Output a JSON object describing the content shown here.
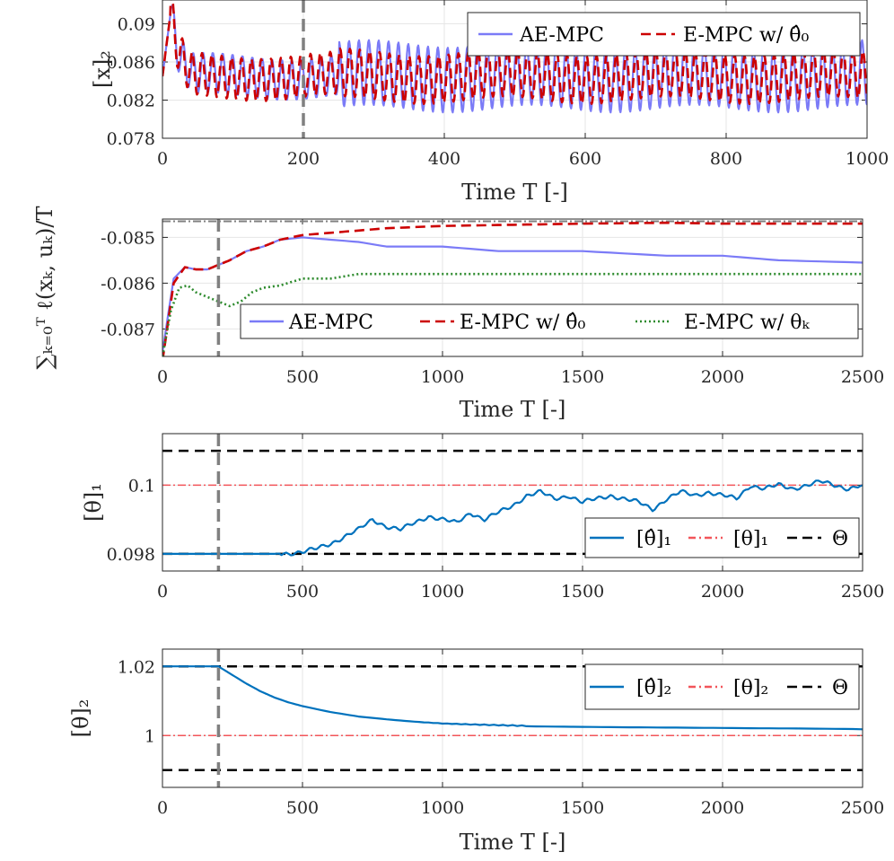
{
  "chart_data": [
    {
      "type": "line",
      "ylabel": "[x]₂",
      "xlabel": "Time T [-]",
      "xlim": [
        0,
        1000
      ],
      "ylim": [
        0.078,
        0.0925
      ],
      "xticks": [
        "0",
        "200",
        "400",
        "600",
        "800",
        "1000"
      ],
      "yticks": [
        "0.078",
        "0.082",
        "0.086",
        "0.09"
      ],
      "grid": true,
      "vline": 200,
      "legend_position": "top-right",
      "series": [
        {
          "name": "AE-MPC",
          "color": "#7B7BF7",
          "style": "solid",
          "mean": 0.0845,
          "amplitude_early": 0.0021,
          "amplitude_late": 0.0034,
          "period": 14,
          "start_peak": 0.0914
        },
        {
          "name": "E-MPC w/ θ̂₀",
          "color": "#CC0000",
          "style": "dashed",
          "mean": 0.0845,
          "amplitude_early": 0.0022,
          "amplitude_late": 0.0025,
          "period": 14,
          "start_peak": 0.0914
        }
      ]
    },
    {
      "type": "line",
      "ylabel": "∑ₖ₌₀ᵀ ℓ(xₖ, uₖ)/T",
      "xlabel": "Time T [-]",
      "xlim": [
        0,
        2500
      ],
      "ylim": [
        -0.0876,
        -0.0846
      ],
      "xticks": [
        "0",
        "500",
        "1000",
        "1500",
        "2000",
        "2500"
      ],
      "yticks": [
        "-0.087",
        "-0.086",
        "-0.085"
      ],
      "grid": true,
      "vline": 200,
      "hline": -0.08465,
      "legend_position": "bottom",
      "series": [
        {
          "name": "AE-MPC",
          "color": "#7B7BF7",
          "style": "solid",
          "x": [
            0,
            40,
            80,
            120,
            160,
            200,
            240,
            300,
            360,
            420,
            500,
            600,
            700,
            800,
            1000,
            1200,
            1500,
            1800,
            2000,
            2200,
            2500
          ],
          "y": [
            -0.0875,
            -0.0859,
            -0.08565,
            -0.0857,
            -0.0857,
            -0.0856,
            -0.0855,
            -0.0853,
            -0.0852,
            -0.08505,
            -0.085,
            -0.08505,
            -0.0851,
            -0.0852,
            -0.0852,
            -0.0853,
            -0.0853,
            -0.0854,
            -0.0854,
            -0.0855,
            -0.08555
          ]
        },
        {
          "name": "E-MPC w/ θ̂₀",
          "color": "#CC0000",
          "style": "dashed",
          "x": [
            0,
            40,
            80,
            120,
            160,
            200,
            240,
            300,
            360,
            420,
            500,
            600,
            700,
            800,
            1000,
            1200,
            1500,
            1800,
            2000,
            2200,
            2500
          ],
          "y": [
            -0.0877,
            -0.086,
            -0.08565,
            -0.0857,
            -0.0857,
            -0.0856,
            -0.0855,
            -0.0853,
            -0.0852,
            -0.08505,
            -0.08495,
            -0.0849,
            -0.08485,
            -0.0848,
            -0.08475,
            -0.08473,
            -0.0847,
            -0.08468,
            -0.0847,
            -0.0847,
            -0.0847
          ]
        },
        {
          "name": "E-MPC w/ θₖ",
          "color": "#2E8B2E",
          "style": "dotted",
          "x": [
            0,
            30,
            60,
            90,
            120,
            160,
            200,
            240,
            280,
            320,
            360,
            420,
            500,
            600,
            700,
            800,
            1000,
            1200,
            1500,
            1800,
            2000,
            2200,
            2500
          ],
          "y": [
            -0.0876,
            -0.0866,
            -0.0861,
            -0.08605,
            -0.0862,
            -0.0863,
            -0.0864,
            -0.0865,
            -0.0864,
            -0.0862,
            -0.0861,
            -0.08605,
            -0.0859,
            -0.0859,
            -0.0858,
            -0.0858,
            -0.0858,
            -0.0858,
            -0.0858,
            -0.0858,
            -0.0858,
            -0.0858,
            -0.0858
          ]
        }
      ]
    },
    {
      "type": "line",
      "ylabel": "[θ]₁",
      "xlabel": "",
      "xlim": [
        0,
        2500
      ],
      "ylim": [
        0.0975,
        0.1015
      ],
      "xticks": [
        "0",
        "500",
        "1000",
        "1500",
        "2000",
        "2500"
      ],
      "yticks": [
        "0.098",
        "0.1"
      ],
      "grid": true,
      "vline": 200,
      "legend_position": "bottom-right",
      "true_value": 0.1,
      "bounds": [
        0.098,
        0.101
      ],
      "series": [
        {
          "name": "[θ̂]₁",
          "color": "#0072BD",
          "style": "solid",
          "x": [
            0,
            200,
            400,
            450,
            500,
            550,
            600,
            650,
            700,
            750,
            800,
            850,
            900,
            950,
            1000,
            1050,
            1100,
            1150,
            1200,
            1250,
            1300,
            1350,
            1400,
            1450,
            1500,
            1550,
            1600,
            1650,
            1700,
            1750,
            1800,
            1850,
            1900,
            1950,
            2000,
            2050,
            2100,
            2150,
            2200,
            2250,
            2300,
            2350,
            2400,
            2450,
            2500
          ],
          "y": [
            0.098,
            0.098,
            0.098,
            0.09802,
            0.09805,
            0.09815,
            0.0983,
            0.0985,
            0.0987,
            0.099,
            0.0988,
            0.0987,
            0.0989,
            0.0991,
            0.099,
            0.0989,
            0.0992,
            0.099,
            0.0992,
            0.0994,
            0.0997,
            0.0998,
            0.0996,
            0.0997,
            0.0995,
            0.0996,
            0.0997,
            0.0996,
            0.0995,
            0.0993,
            0.0996,
            0.0998,
            0.0997,
            0.0998,
            0.0997,
            0.0996,
            0.1,
            0.0999,
            0.1,
            0.0999,
            0.1,
            0.1001,
            0.1,
            0.0999,
            0.1
          ]
        }
      ]
    },
    {
      "type": "line",
      "ylabel": "[θ]₂",
      "xlabel": "Time T [-]",
      "xlim": [
        0,
        2500
      ],
      "ylim": [
        0.985,
        1.025
      ],
      "xticks": [
        "0",
        "500",
        "1000",
        "1500",
        "2000",
        "2500"
      ],
      "yticks": [
        "1",
        "1.02"
      ],
      "grid": true,
      "vline": 200,
      "legend_position": "top-right",
      "true_value": 1,
      "bounds": [
        0.99,
        1.02
      ],
      "series": [
        {
          "name": "[θ̂]₂",
          "color": "#0072BD",
          "style": "solid",
          "x": [
            0,
            200,
            250,
            300,
            350,
            400,
            450,
            500,
            600,
            700,
            800,
            900,
            1000,
            1100,
            1200,
            1300,
            1500,
            1700,
            1900,
            2100,
            2300,
            2500
          ],
          "y": [
            1.02,
            1.02,
            1.0175,
            1.015,
            1.0128,
            1.011,
            1.0096,
            1.0085,
            1.0068,
            1.0055,
            1.0047,
            1.004,
            1.0035,
            1.0032,
            1.003,
            1.0028,
            1.0026,
            1.0024,
            1.0022,
            1.002,
            1.0019,
            1.0018
          ]
        }
      ]
    }
  ]
}
